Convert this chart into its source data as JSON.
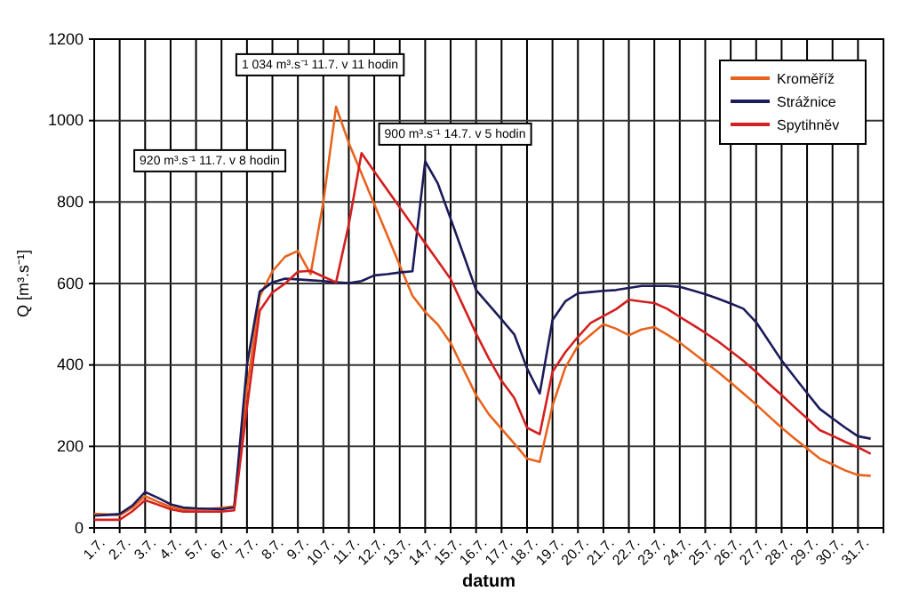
{
  "chart_data": {
    "type": "line",
    "xlabel": "datum",
    "ylabel": "Q [m³.s⁻¹]",
    "categories": [
      "1.7.",
      null,
      "2.7.",
      null,
      "3.7.",
      null,
      "4.7.",
      null,
      "5.7.",
      null,
      "6.7.",
      null,
      "7.7.",
      null,
      "8.7.",
      null,
      "9.7.",
      null,
      "10.7.",
      null,
      "11.7.",
      null,
      "12.7.",
      null,
      "13.7.",
      null,
      "14.7.",
      null,
      "15.7.",
      null,
      "16.7.",
      null,
      "17.7.",
      null,
      "18.7.",
      null,
      "19.7.",
      null,
      "20.7.",
      null,
      "21.7.",
      null,
      "22.7.",
      null,
      "23.7.",
      null,
      "24.7.",
      null,
      "25.7.",
      null,
      "26.7.",
      null,
      "27.7.",
      null,
      "28.7.",
      null,
      "29.7.",
      null,
      "30.7.",
      null,
      "31.7.",
      null
    ],
    "ylim": [
      0,
      1200
    ],
    "yticks": [
      0,
      200,
      400,
      600,
      800,
      1000,
      1200
    ],
    "grid": true,
    "legend": "top right",
    "line_style": "solid",
    "annotations": [
      "1 034 m³.s⁻¹ 11.7. v 11 hodin",
      "920 m³.s⁻¹ 11.7. v 8 hodin",
      "900 m³.s⁻¹ 14.7. v 5 hodin"
    ],
    "series": [
      {
        "name": "Kroměříž",
        "color": "#e8641e",
        "values": [
          35,
          33,
          31,
          50,
          78,
          64,
          52,
          45,
          46,
          47,
          49,
          53,
          340,
          568,
          630,
          666,
          680,
          623,
          800,
          1034,
          945,
          870,
          795,
          720,
          645,
          570,
          530,
          499,
          454,
          390,
          326,
          279,
          243,
          207,
          170,
          162,
          300,
          393,
          447,
          474,
          500,
          489,
          473,
          487,
          493,
          475,
          455,
          431,
          407,
          383,
          357,
          330,
          303,
          274,
          246,
          220,
          195,
          170,
          156,
          141,
          130,
          128
        ]
      },
      {
        "name": "Strážnice",
        "color": "#1c1c5a",
        "values": [
          30,
          32,
          34,
          55,
          88,
          74,
          58,
          50,
          48,
          47,
          46,
          50,
          400,
          580,
          603,
          612,
          610,
          608,
          606,
          603,
          601,
          606,
          620,
          623,
          627,
          630,
          900,
          845,
          759,
          672,
          584,
          548,
          512,
          475,
          392,
          330,
          510,
          556,
          576,
          579,
          582,
          584,
          589,
          594,
          594,
          594,
          592,
          583,
          574,
          563,
          551,
          538,
          505,
          458,
          411,
          371,
          331,
          292,
          269,
          246,
          225,
          219
        ]
      },
      {
        "name": "Spytihněv",
        "color": "#d42020",
        "values": [
          20,
          20,
          20,
          41,
          68,
          57,
          46,
          40,
          40,
          40,
          40,
          43,
          295,
          533,
          578,
          600,
          629,
          631,
          617,
          603,
          745,
          920,
          875,
          831,
          787,
          743,
          699,
          655,
          611,
          544,
          477,
          416,
          361,
          319,
          246,
          230,
          383,
          431,
          469,
          503,
          520,
          537,
          560,
          556,
          552,
          538,
          518,
          499,
          479,
          458,
          434,
          410,
          383,
          354,
          326,
          297,
          269,
          240,
          226,
          211,
          198,
          182
        ]
      }
    ]
  }
}
